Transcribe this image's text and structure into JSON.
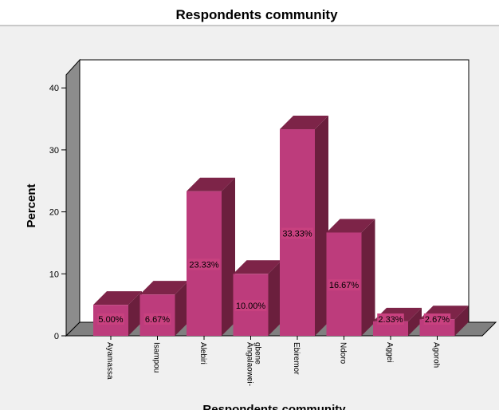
{
  "chart_data": {
    "type": "bar",
    "title": "Respondents community",
    "xlabel": "Respondents community",
    "ylabel": "Percent",
    "categories": [
      "Ayamassa",
      "Isampou",
      "Alebiri",
      "Angalaowei-gbene",
      "Ebiremor",
      "Ndoro",
      "Aggei",
      "Agoroh"
    ],
    "category_lines": [
      [
        "Ayamassa"
      ],
      [
        "Isampou"
      ],
      [
        "Alebiri"
      ],
      [
        "Angalaowei-",
        "gbene"
      ],
      [
        "Ebiremor"
      ],
      [
        "Ndoro"
      ],
      [
        "Aggei"
      ],
      [
        "Agoroh"
      ]
    ],
    "values": [
      5.0,
      6.67,
      23.33,
      10.0,
      33.33,
      16.67,
      2.33,
      2.67
    ],
    "value_labels": [
      "5.00%",
      "6.67%",
      "23.33%",
      "10.00%",
      "33.33%",
      "16.67%",
      "2.33%",
      "2.67%"
    ],
    "ylim": [
      0,
      43
    ],
    "yticks": [
      0,
      10,
      20,
      30,
      40
    ],
    "style": "3d",
    "colors": {
      "bar_front": "#bd3c7c",
      "bar_top": "#7d2448",
      "bar_side": "#6b1f3d",
      "label_bg": "#c8417f",
      "plot_bg": "#ffffff",
      "outer_bg": "#f0f0f0",
      "side_wall": "#8c8c8c",
      "floor": "#808080"
    }
  }
}
